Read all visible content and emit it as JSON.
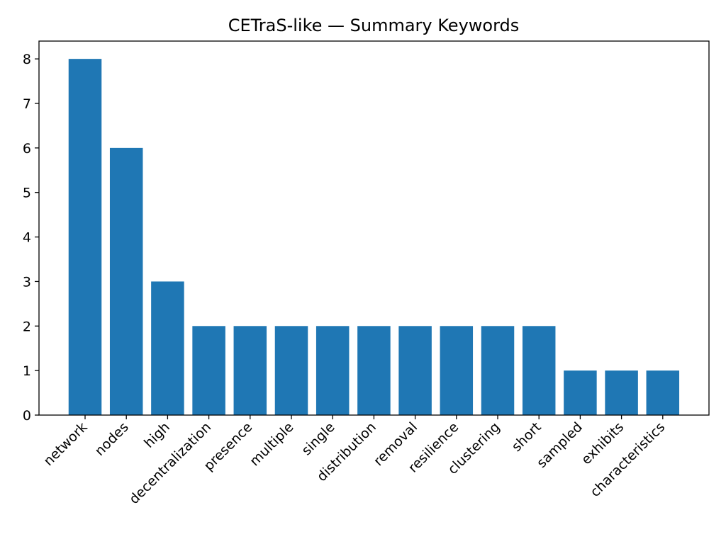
{
  "chart_data": {
    "type": "bar",
    "title": "CETraS-like — Summary Keywords",
    "xlabel": "",
    "ylabel": "",
    "categories": [
      "network",
      "nodes",
      "high",
      "decentralization",
      "presence",
      "multiple",
      "single",
      "distribution",
      "removal",
      "resilience",
      "clustering",
      "short",
      "sampled",
      "exhibits",
      "characteristics"
    ],
    "values": [
      8,
      6,
      3,
      2,
      2,
      2,
      2,
      2,
      2,
      2,
      2,
      2,
      1,
      1,
      1
    ],
    "ylim": [
      0,
      8.4
    ],
    "yticks": [
      0,
      1,
      2,
      3,
      4,
      5,
      6,
      7,
      8
    ],
    "grid": false,
    "legend": "none",
    "colors": {
      "bar": "#1f77b4"
    }
  }
}
